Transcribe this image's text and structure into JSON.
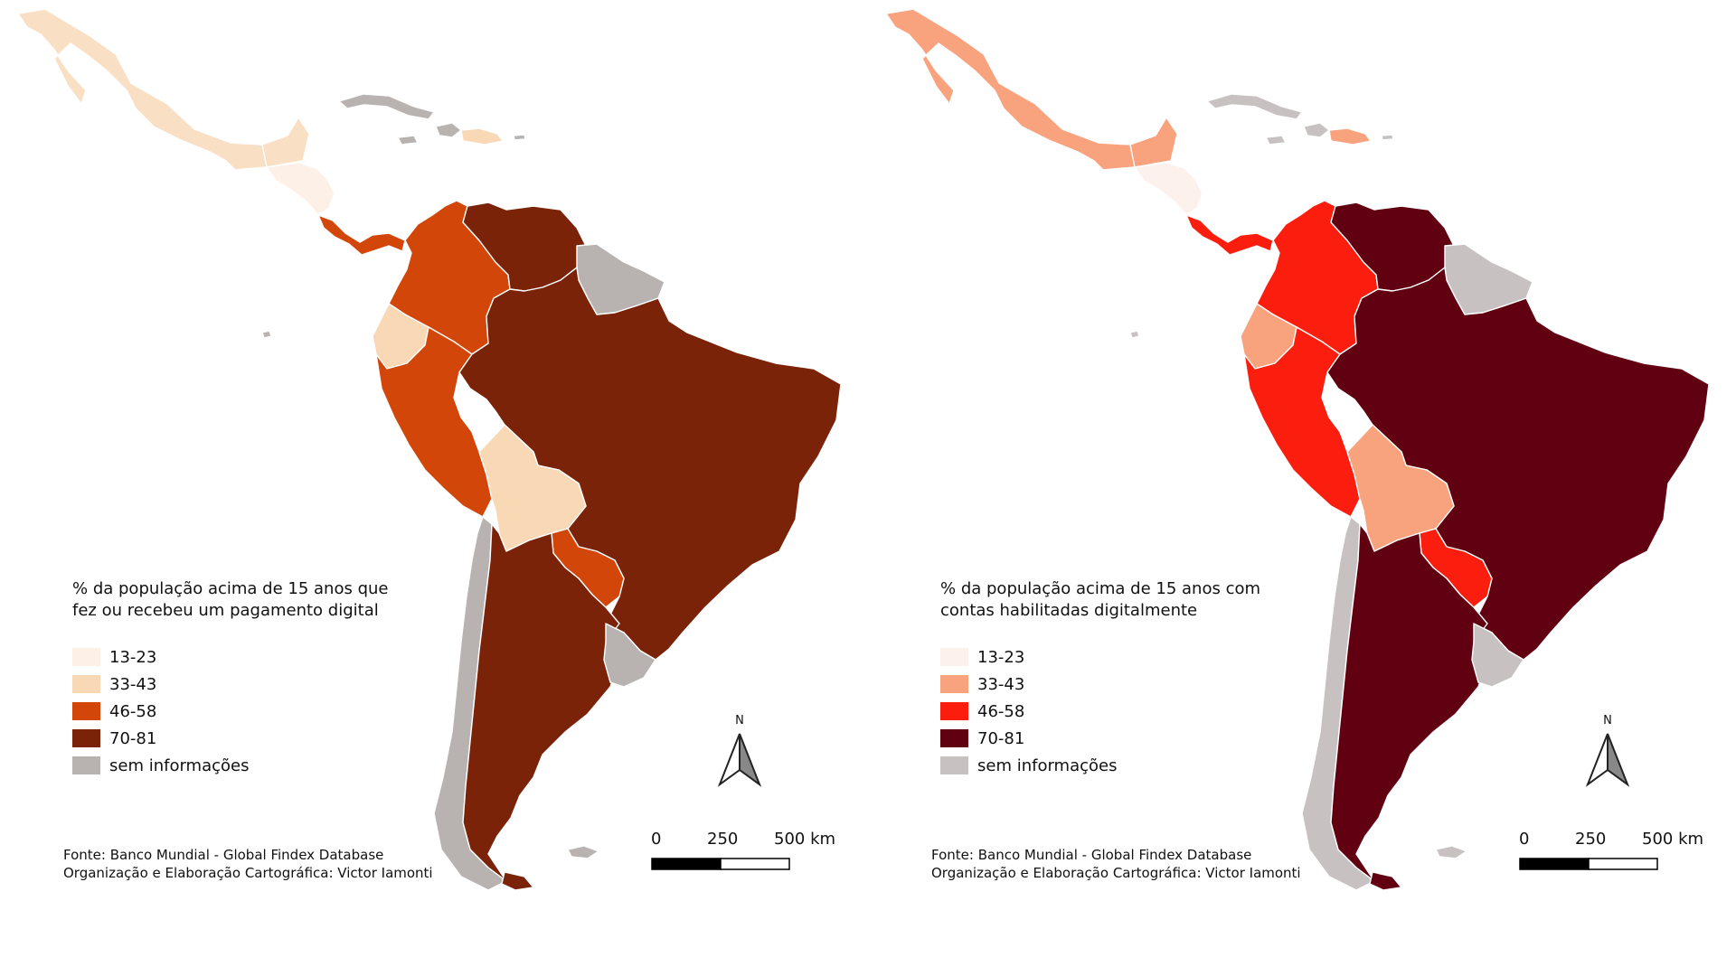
{
  "maps": [
    {
      "legend_title_line1": "% da população acima de 15 anos que",
      "legend_title_line2": "fez ou recebeu um pagamento digital",
      "legend": [
        {
          "label": "13-23",
          "color": "#fdf0e6"
        },
        {
          "label": "33-43",
          "color": "#f9d8b6"
        },
        {
          "label": "46-58",
          "color": "#d2460a"
        },
        {
          "label": "70-81",
          "color": "#7a2309"
        },
        {
          "label": "sem informações",
          "color": "#b8b2b0"
        }
      ],
      "colors": {
        "low": "#fdf0e6",
        "midlow": "#f9d8b6",
        "mid": "#d2460a",
        "high": "#7a2309",
        "nodata": "#b8b2b0",
        "mexico": "#f9e0c4"
      }
    },
    {
      "legend_title_line1": "% da população acima de 15 anos com",
      "legend_title_line2": "contas habilitadas digitalmente",
      "legend": [
        {
          "label": "13-23",
          "color": "#fdf1ec"
        },
        {
          "label": "33-43",
          "color": "#f9a27e"
        },
        {
          "label": "46-58",
          "color": "#fb1d0d"
        },
        {
          "label": "70-81",
          "color": "#600010"
        },
        {
          "label": "sem informações",
          "color": "#c8c1c2"
        }
      ],
      "colors": {
        "low": "#fdf1ec",
        "midlow": "#f9a27e",
        "mid": "#fb1d0d",
        "high": "#600010",
        "nodata": "#c8c1c2",
        "mexico": "#f9a27e"
      }
    }
  ],
  "credits_line1": "Fonte: Banco Mundial - Global Findex Database",
  "credits_line2": "Organização e Elaboração Cartográfica: Victor Iamonti",
  "north_label": "N",
  "scale_labels": [
    "0",
    "250",
    "500 km"
  ]
}
